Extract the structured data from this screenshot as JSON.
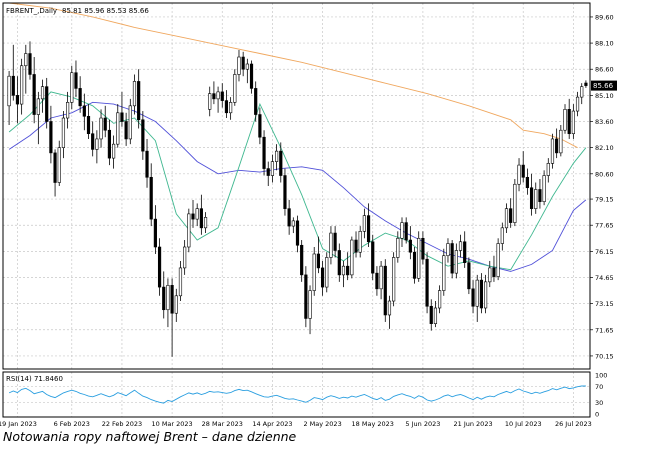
{
  "chart_data": {
    "type": "candlestick",
    "symbol_label": "FBRENT_,Daily",
    "ohlc_label": "85.81 85.96 85.53 85.66",
    "last_price_label": "85.66",
    "y_ticks": [
      "89.60",
      "88.10",
      "86.60",
      "85.10",
      "83.60",
      "82.10",
      "80.60",
      "79.15",
      "77.65",
      "76.15",
      "74.65",
      "73.15",
      "71.65",
      "70.15"
    ],
    "ylim": [
      69.4,
      90.4
    ],
    "x_ticks": [
      "19 Jan 2023",
      "6 Feb 2023",
      "22 Feb 2023",
      "10 Mar 2023",
      "28 Mar 2023",
      "14 Apr 2023",
      "2 May 2023",
      "18 May 2023",
      "5 Jun 2023",
      "21 Jun 2023",
      "10 Jul 2023",
      "26 Jul 2023"
    ],
    "x_tick_bars": [
      2,
      15,
      27,
      39,
      51,
      63,
      75,
      87,
      99,
      111,
      123,
      135
    ],
    "bars": [
      [
        84.5,
        86.5,
        83.4,
        86.2
      ],
      [
        86.2,
        88.0,
        84.8,
        85.1
      ],
      [
        85.1,
        86.2,
        83.5,
        84.6
      ],
      [
        84.6,
        87.2,
        84.0,
        86.8
      ],
      [
        86.8,
        88.0,
        85.2,
        87.5
      ],
      [
        87.5,
        88.2,
        86.0,
        86.3
      ],
      [
        86.3,
        87.3,
        83.5,
        84.0
      ],
      [
        84.0,
        85.3,
        82.3,
        84.9
      ],
      [
        84.9,
        86.0,
        84.1,
        85.6
      ],
      [
        85.6,
        86.1,
        83.2,
        83.6
      ],
      [
        83.6,
        84.5,
        81.2,
        81.8
      ],
      [
        81.8,
        82.0,
        79.3,
        80.1
      ],
      [
        80.1,
        82.5,
        79.9,
        82.1
      ],
      [
        82.1,
        84.2,
        81.5,
        83.8
      ],
      [
        83.8,
        85.3,
        83.2,
        84.7
      ],
      [
        84.7,
        86.8,
        84.3,
        86.4
      ],
      [
        86.4,
        87.1,
        85.0,
        85.5
      ],
      [
        85.5,
        86.2,
        84.1,
        84.5
      ],
      [
        84.5,
        85.2,
        83.1,
        83.9
      ],
      [
        83.9,
        84.6,
        82.6,
        82.9
      ],
      [
        82.9,
        83.6,
        81.6,
        82.0
      ],
      [
        82.0,
        83.1,
        81.2,
        82.6
      ],
      [
        82.6,
        84.3,
        82.1,
        83.8
      ],
      [
        83.8,
        84.5,
        82.7,
        83.1
      ],
      [
        83.1,
        83.7,
        81.1,
        81.5
      ],
      [
        81.5,
        82.8,
        80.9,
        82.3
      ],
      [
        82.3,
        84.6,
        82.1,
        84.1
      ],
      [
        84.1,
        85.3,
        83.3,
        83.6
      ],
      [
        83.6,
        84.1,
        82.2,
        82.6
      ],
      [
        82.6,
        84.9,
        82.3,
        84.5
      ],
      [
        84.5,
        86.3,
        84.0,
        85.9
      ],
      [
        85.9,
        86.6,
        83.2,
        83.7
      ],
      [
        83.7,
        84.2,
        81.4,
        81.9
      ],
      [
        81.9,
        82.6,
        79.8,
        80.4
      ],
      [
        80.4,
        81.2,
        77.6,
        78.0
      ],
      [
        78.0,
        78.8,
        76.0,
        76.4
      ],
      [
        76.4,
        76.9,
        73.6,
        74.1
      ],
      [
        74.1,
        75.0,
        72.3,
        72.8
      ],
      [
        72.8,
        74.6,
        71.8,
        74.2
      ],
      [
        74.2,
        74.6,
        70.1,
        72.6
      ],
      [
        72.6,
        74.0,
        72.1,
        73.6
      ],
      [
        73.6,
        75.6,
        73.3,
        75.2
      ],
      [
        75.2,
        76.8,
        74.8,
        76.4
      ],
      [
        76.4,
        78.6,
        76.1,
        78.3
      ],
      [
        78.3,
        79.1,
        77.5,
        78.0
      ],
      [
        78.0,
        78.9,
        77.6,
        78.6
      ],
      [
        78.6,
        79.4,
        77.1,
        77.5
      ],
      [
        77.5,
        78.4,
        77.2,
        78.1
      ],
      [
        84.3,
        85.6,
        83.9,
        85.2
      ],
      [
        85.2,
        85.9,
        84.6,
        84.9
      ],
      [
        84.9,
        85.6,
        84.1,
        85.3
      ],
      [
        85.3,
        85.8,
        84.4,
        84.8
      ],
      [
        84.8,
        85.4,
        83.8,
        84.1
      ],
      [
        84.1,
        85.0,
        83.7,
        84.7
      ],
      [
        84.7,
        86.6,
        84.5,
        86.3
      ],
      [
        86.3,
        87.7,
        85.9,
        87.3
      ],
      [
        87.3,
        87.6,
        86.2,
        86.6
      ],
      [
        86.6,
        87.2,
        85.8,
        86.9
      ],
      [
        86.9,
        87.1,
        85.2,
        85.5
      ],
      [
        85.5,
        85.9,
        83.6,
        84.0
      ],
      [
        84.0,
        84.4,
        82.3,
        82.7
      ],
      [
        82.7,
        83.1,
        80.5,
        80.9
      ],
      [
        80.9,
        81.3,
        79.9,
        80.5
      ],
      [
        80.5,
        81.7,
        80.1,
        81.3
      ],
      [
        81.3,
        82.3,
        80.8,
        81.9
      ],
      [
        81.9,
        82.4,
        80.1,
        80.5
      ],
      [
        80.5,
        80.9,
        78.2,
        78.6
      ],
      [
        78.6,
        79.1,
        77.1,
        77.6
      ],
      [
        77.6,
        78.1,
        77.2,
        77.9
      ],
      [
        77.9,
        78.2,
        76.1,
        76.5
      ],
      [
        76.5,
        76.8,
        74.4,
        74.8
      ],
      [
        74.8,
        75.3,
        71.8,
        72.3
      ],
      [
        72.3,
        74.2,
        71.4,
        73.9
      ],
      [
        73.9,
        76.4,
        73.6,
        76.0
      ],
      [
        76.0,
        77.0,
        74.9,
        75.2
      ],
      [
        75.2,
        75.6,
        73.6,
        74.1
      ],
      [
        74.1,
        76.1,
        73.8,
        75.8
      ],
      [
        75.8,
        77.6,
        75.4,
        77.2
      ],
      [
        77.2,
        77.6,
        75.8,
        76.2
      ],
      [
        76.2,
        76.6,
        74.4,
        74.8
      ],
      [
        74.8,
        75.6,
        74.1,
        75.3
      ],
      [
        75.3,
        76.1,
        74.5,
        74.8
      ],
      [
        74.8,
        77.0,
        74.6,
        76.8
      ],
      [
        76.8,
        77.3,
        75.8,
        76.1
      ],
      [
        76.1,
        77.6,
        75.8,
        77.3
      ],
      [
        77.3,
        78.6,
        76.9,
        78.2
      ],
      [
        78.2,
        78.9,
        76.4,
        76.7
      ],
      [
        76.7,
        77.1,
        74.5,
        74.9
      ],
      [
        74.9,
        75.3,
        73.6,
        74.0
      ],
      [
        74.0,
        75.6,
        73.4,
        75.3
      ],
      [
        75.3,
        75.7,
        72.1,
        72.5
      ],
      [
        72.5,
        73.6,
        71.7,
        73.3
      ],
      [
        73.3,
        76.1,
        73.0,
        75.8
      ],
      [
        75.8,
        77.3,
        75.5,
        76.9
      ],
      [
        76.9,
        78.1,
        76.4,
        77.8
      ],
      [
        77.8,
        78.1,
        76.6,
        76.8
      ],
      [
        76.8,
        77.6,
        75.7,
        76.1
      ],
      [
        76.1,
        76.4,
        74.3,
        74.6
      ],
      [
        74.6,
        77.3,
        74.4,
        76.9
      ],
      [
        76.9,
        77.3,
        75.4,
        75.7
      ],
      [
        75.7,
        76.1,
        72.6,
        73.0
      ],
      [
        73.0,
        73.4,
        71.6,
        72.0
      ],
      [
        72.0,
        73.3,
        71.8,
        72.9
      ],
      [
        72.9,
        74.2,
        72.6,
        73.9
      ],
      [
        73.9,
        76.3,
        73.6,
        75.9
      ],
      [
        75.9,
        76.9,
        75.5,
        76.6
      ],
      [
        76.6,
        76.8,
        74.6,
        74.9
      ],
      [
        74.9,
        76.6,
        74.6,
        76.2
      ],
      [
        76.2,
        77.1,
        75.8,
        76.7
      ],
      [
        76.7,
        77.3,
        75.2,
        75.5
      ],
      [
        75.5,
        75.8,
        73.7,
        74.0
      ],
      [
        74.0,
        74.5,
        72.6,
        73.0
      ],
      [
        73.0,
        74.8,
        72.1,
        74.5
      ],
      [
        74.5,
        74.9,
        72.6,
        72.9
      ],
      [
        72.9,
        74.8,
        72.6,
        74.4
      ],
      [
        74.4,
        75.6,
        74.1,
        75.2
      ],
      [
        75.2,
        75.9,
        74.4,
        74.7
      ],
      [
        74.7,
        76.9,
        74.5,
        76.6
      ],
      [
        76.6,
        77.8,
        76.2,
        77.5
      ],
      [
        77.5,
        78.9,
        77.2,
        78.6
      ],
      [
        78.6,
        79.2,
        77.5,
        77.8
      ],
      [
        77.8,
        80.3,
        77.6,
        80.0
      ],
      [
        80.0,
        81.5,
        79.6,
        81.1
      ],
      [
        81.1,
        81.9,
        80.1,
        80.4
      ],
      [
        80.4,
        80.9,
        79.4,
        79.8
      ],
      [
        79.8,
        80.6,
        78.2,
        78.6
      ],
      [
        78.6,
        80.1,
        78.3,
        79.7
      ],
      [
        79.7,
        80.3,
        78.6,
        79.0
      ],
      [
        79.0,
        80.8,
        78.8,
        80.5
      ],
      [
        80.5,
        81.5,
        80.1,
        81.2
      ],
      [
        81.2,
        82.9,
        80.9,
        82.6
      ],
      [
        82.6,
        83.2,
        81.5,
        81.8
      ],
      [
        81.8,
        83.4,
        81.6,
        83.1
      ],
      [
        83.1,
        84.6,
        82.9,
        84.3
      ],
      [
        84.3,
        84.9,
        82.6,
        82.9
      ],
      [
        82.9,
        84.6,
        82.6,
        84.2
      ],
      [
        84.2,
        85.3,
        83.9,
        85.0
      ],
      [
        85.0,
        85.8,
        84.6,
        85.6
      ],
      [
        85.81,
        85.96,
        85.53,
        85.66
      ]
    ],
    "ma_orange": [
      [
        0,
        90.4
      ],
      [
        10,
        90.1
      ],
      [
        20,
        89.6
      ],
      [
        30,
        89.0
      ],
      [
        40,
        88.5
      ],
      [
        50,
        88.0
      ],
      [
        60,
        87.5
      ],
      [
        70,
        87.0
      ],
      [
        80,
        86.4
      ],
      [
        90,
        85.8
      ],
      [
        100,
        85.2
      ],
      [
        110,
        84.5
      ],
      [
        120,
        83.7
      ],
      [
        123,
        83.1
      ],
      [
        128,
        82.9
      ],
      [
        132,
        82.6
      ],
      [
        136,
        82.1
      ]
    ],
    "ma_blue": [
      [
        0,
        82.0
      ],
      [
        5,
        82.8
      ],
      [
        10,
        83.8
      ],
      [
        15,
        84.1
      ],
      [
        20,
        84.7
      ],
      [
        25,
        84.6
      ],
      [
        30,
        84.2
      ],
      [
        35,
        83.6
      ],
      [
        40,
        82.5
      ],
      [
        45,
        81.3
      ],
      [
        50,
        80.6
      ],
      [
        55,
        80.8
      ],
      [
        60,
        80.7
      ],
      [
        65,
        80.9
      ],
      [
        70,
        81.0
      ],
      [
        75,
        80.8
      ],
      [
        80,
        79.8
      ],
      [
        85,
        78.7
      ],
      [
        90,
        77.9
      ],
      [
        95,
        77.2
      ],
      [
        100,
        76.6
      ],
      [
        105,
        76.0
      ],
      [
        110,
        75.7
      ],
      [
        115,
        75.3
      ],
      [
        120,
        75.0
      ],
      [
        125,
        75.4
      ],
      [
        130,
        76.2
      ],
      [
        135,
        78.5
      ],
      [
        138,
        79.1
      ]
    ],
    "ma_green": [
      [
        0,
        83.0
      ],
      [
        5,
        84.0
      ],
      [
        10,
        85.3
      ],
      [
        15,
        85.0
      ],
      [
        20,
        84.5
      ],
      [
        25,
        83.5
      ],
      [
        30,
        83.8
      ],
      [
        35,
        82.5
      ],
      [
        40,
        78.3
      ],
      [
        45,
        76.8
      ],
      [
        50,
        77.5
      ],
      [
        55,
        81.0
      ],
      [
        60,
        84.6
      ],
      [
        65,
        82.1
      ],
      [
        70,
        79.4
      ],
      [
        75,
        76.3
      ],
      [
        80,
        75.6
      ],
      [
        85,
        76.5
      ],
      [
        90,
        77.2
      ],
      [
        95,
        76.8
      ],
      [
        100,
        75.9
      ],
      [
        105,
        75.3
      ],
      [
        110,
        75.6
      ],
      [
        115,
        75.3
      ],
      [
        120,
        75.1
      ],
      [
        125,
        77.1
      ],
      [
        130,
        79.3
      ],
      [
        135,
        81.2
      ],
      [
        138,
        82.1
      ]
    ],
    "rsi": {
      "label": "RSI(14) 71.8460",
      "levels": [
        "100",
        "70",
        "30",
        "0"
      ],
      "values": [
        54,
        59,
        55,
        63,
        66,
        60,
        52,
        55,
        58,
        50,
        45,
        42,
        48,
        54,
        58,
        61,
        58,
        53,
        50,
        46,
        44,
        48,
        52,
        48,
        44,
        48,
        55,
        51,
        47,
        54,
        61,
        53,
        46,
        42,
        37,
        33,
        30,
        28,
        35,
        32,
        38,
        44,
        49,
        54,
        51,
        54,
        50,
        53,
        58,
        56,
        57,
        55,
        53,
        55,
        60,
        63,
        60,
        61,
        57,
        52,
        48,
        44,
        43,
        46,
        48,
        44,
        40,
        38,
        39,
        36,
        33,
        30,
        35,
        42,
        40,
        37,
        43,
        47,
        44,
        40,
        43,
        41,
        46,
        43,
        47,
        50,
        45,
        40,
        37,
        42,
        35,
        38,
        45,
        49,
        52,
        48,
        45,
        40,
        47,
        43,
        36,
        33,
        36,
        40,
        46,
        49,
        44,
        48,
        50,
        46,
        41,
        37,
        43,
        38,
        43,
        46,
        44,
        50,
        54,
        58,
        54,
        60,
        64,
        59,
        56,
        52,
        56,
        53,
        57,
        60,
        65,
        62,
        66,
        69,
        65,
        67,
        70,
        72,
        71.8
      ]
    }
  },
  "caption": "Notowania ropy naftowej Brent – dane dzienne",
  "colors": {
    "ma_orange": "#f0a860",
    "ma_blue": "#5050d8",
    "ma_green": "#40b890",
    "rsi": "#2b9fe0",
    "grid": "#c8c8c8",
    "price_tag_bg": "#000000"
  }
}
